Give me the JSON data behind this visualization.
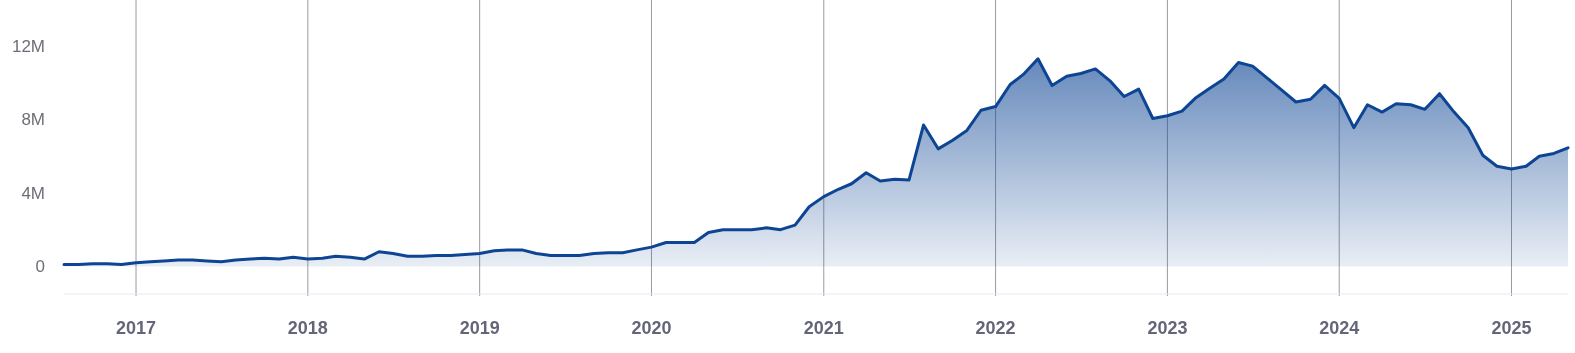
{
  "chart_data": {
    "type": "area",
    "x": [
      "2016-08",
      "2016-09",
      "2016-10",
      "2016-11",
      "2016-12",
      "2017-01",
      "2017-02",
      "2017-03",
      "2017-04",
      "2017-05",
      "2017-06",
      "2017-07",
      "2017-08",
      "2017-09",
      "2017-10",
      "2017-11",
      "2017-12",
      "2018-01",
      "2018-02",
      "2018-03",
      "2018-04",
      "2018-05",
      "2018-06",
      "2018-07",
      "2018-08",
      "2018-09",
      "2018-10",
      "2018-11",
      "2018-12",
      "2019-01",
      "2019-02",
      "2019-03",
      "2019-04",
      "2019-05",
      "2019-06",
      "2019-07",
      "2019-08",
      "2019-09",
      "2019-10",
      "2019-11",
      "2019-12",
      "2020-01",
      "2020-02",
      "2020-03",
      "2020-04",
      "2020-05",
      "2020-06",
      "2020-07",
      "2020-08",
      "2020-09",
      "2020-10",
      "2020-11",
      "2020-12",
      "2021-01",
      "2021-02",
      "2021-03",
      "2021-04",
      "2021-05",
      "2021-06",
      "2021-07",
      "2021-08",
      "2021-09",
      "2021-10",
      "2021-11",
      "2021-12",
      "2022-01",
      "2022-02",
      "2022-03",
      "2022-04",
      "2022-05",
      "2022-06",
      "2022-07",
      "2022-08",
      "2022-09",
      "2022-10",
      "2022-11",
      "2022-12",
      "2023-01",
      "2023-02",
      "2023-03",
      "2023-04",
      "2023-05",
      "2023-06",
      "2023-07",
      "2023-08",
      "2023-09",
      "2023-10",
      "2023-11",
      "2023-12",
      "2024-01",
      "2024-02",
      "2024-03",
      "2024-04",
      "2024-05",
      "2024-06",
      "2024-07",
      "2024-08",
      "2024-09",
      "2024-10",
      "2024-11",
      "2024-12",
      "2025-01",
      "2025-02",
      "2025-03",
      "2025-04",
      "2025-05"
    ],
    "series": [
      {
        "color": "#0d4594",
        "values": [
          0.1,
          0.1,
          0.15,
          0.15,
          0.1,
          0.2,
          0.25,
          0.3,
          0.35,
          0.35,
          0.3,
          0.25,
          0.35,
          0.4,
          0.45,
          0.4,
          0.5,
          0.4,
          0.45,
          0.55,
          0.5,
          0.4,
          0.8,
          0.7,
          0.55,
          0.55,
          0.6,
          0.6,
          0.65,
          0.7,
          0.85,
          0.9,
          0.9,
          0.7,
          0.6,
          0.6,
          0.6,
          0.7,
          0.75,
          0.75,
          0.9,
          1.05,
          1.3,
          1.3,
          1.3,
          1.85,
          2.0,
          2.0,
          2.0,
          2.1,
          2.0,
          2.25,
          3.25,
          3.8,
          4.2,
          4.5,
          5.1,
          4.65,
          4.75,
          4.7,
          7.7,
          6.4,
          6.85,
          7.4,
          8.5,
          8.7,
          9.9,
          10.45,
          11.3,
          9.85,
          10.35,
          10.5,
          10.75,
          10.1,
          9.25,
          9.65,
          8.05,
          8.2,
          8.45,
          9.15,
          9.7,
          10.2,
          11.1,
          10.9,
          10.25,
          9.6,
          8.95,
          9.1,
          9.85,
          9.15,
          7.55,
          8.8,
          8.4,
          8.85,
          8.8,
          8.55,
          9.4,
          8.4,
          7.55,
          6.05,
          5.45,
          5.3,
          5.45,
          6.0,
          6.15,
          6.45
        ]
      }
    ],
    "xlim": [
      "2016-08",
      "2025-05"
    ],
    "xticks": [
      "2017",
      "2018",
      "2019",
      "2020",
      "2021",
      "2022",
      "2023",
      "2024",
      "2025"
    ],
    "ylim": [
      -1.5,
      14.5
    ],
    "yticks": [
      {
        "value": 0,
        "label": "0"
      },
      {
        "value": 4,
        "label": "4M"
      },
      {
        "value": 8,
        "label": "8M"
      },
      {
        "value": 12,
        "label": "12M"
      }
    ],
    "grid": "x"
  }
}
